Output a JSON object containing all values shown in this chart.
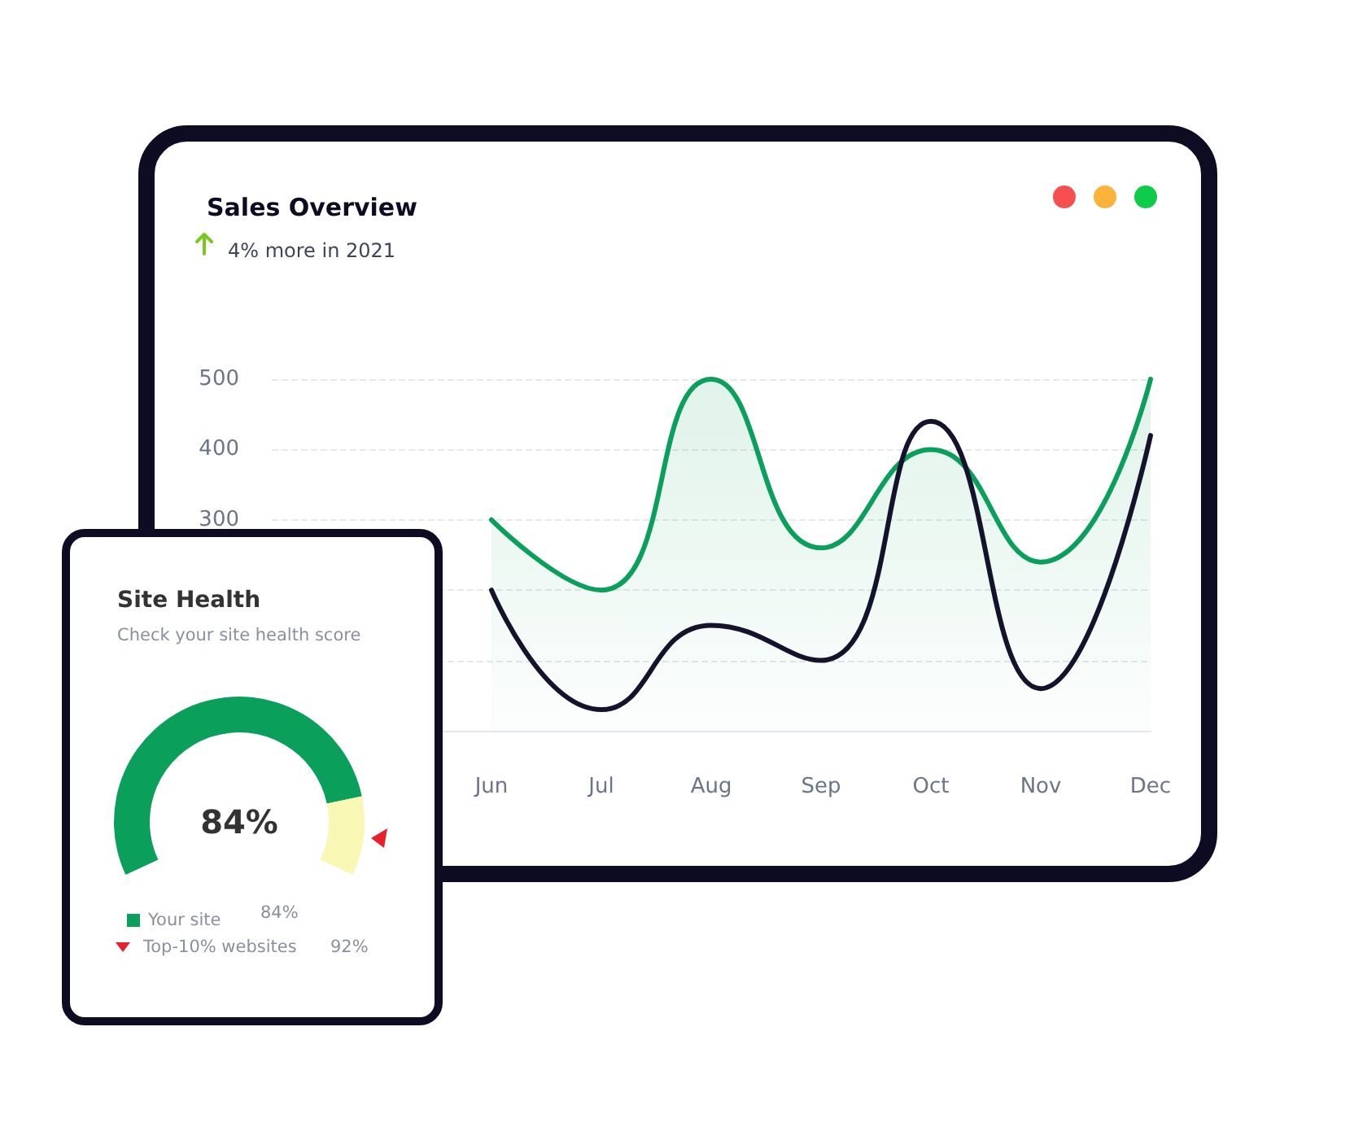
{
  "chart_data": [
    {
      "type": "line",
      "title": "Sales Overview",
      "subtitle": "4% more in 2021",
      "categories": [
        null,
        null,
        "Jun",
        "Jul",
        "Aug",
        "Sep",
        "Oct",
        "Nov",
        "Dec"
      ],
      "series": [
        {
          "type": "area",
          "color": "#0a9f5a",
          "values": [
            null,
            null,
            300,
            200,
            500,
            260,
            400,
            240,
            500
          ]
        },
        {
          "type": "line",
          "color": "#14132b",
          "values": [
            null,
            null,
            200,
            30,
            150,
            100,
            440,
            60,
            420
          ]
        }
      ],
      "ylim": [
        0,
        500
      ],
      "yticks": [
        {
          "value": 100,
          "label": null
        },
        {
          "value": 200,
          "label": null
        },
        300,
        400,
        500
      ],
      "grid": "y",
      "marker": "none",
      "line_style": "solid"
    },
    {
      "type": "donut",
      "title": "Site Health",
      "subtitle": "Check your site health score",
      "categories": [
        "Your site",
        null
      ],
      "values": [
        84,
        16
      ],
      "colors": [
        "#0a9f5a",
        "#f8f8b4"
      ],
      "legend": "bottom",
      "annotations": [
        "84%",
        "84%",
        "Top-10% websites",
        "92%"
      ]
    }
  ]
}
